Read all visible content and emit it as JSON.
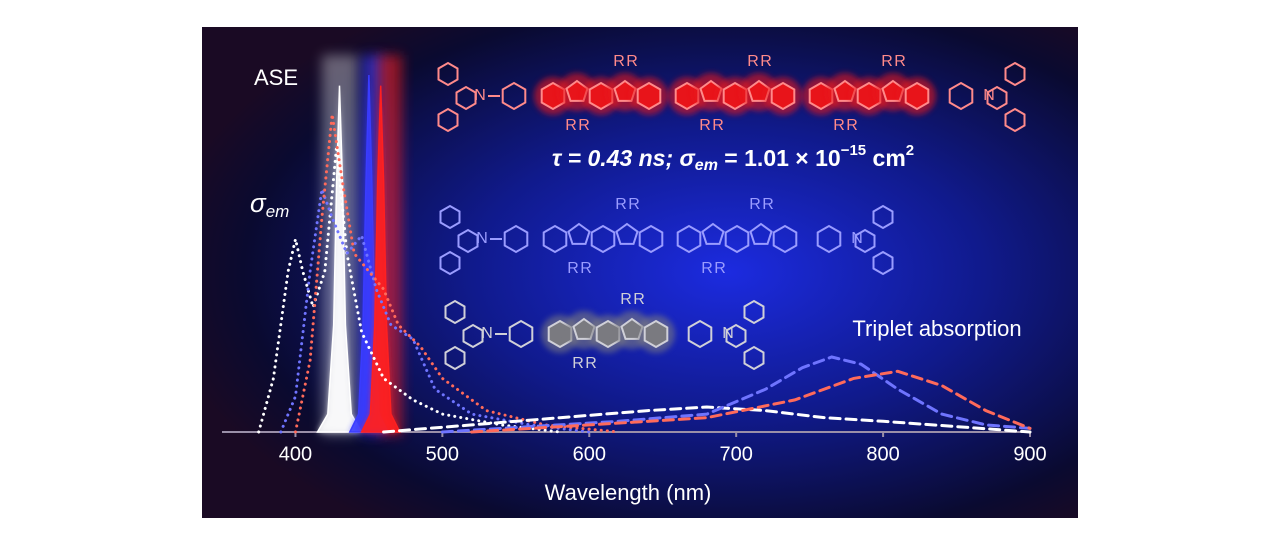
{
  "chart_data": {
    "type": "line",
    "xlabel": "Wavelength (nm)",
    "xlim": [
      350,
      900
    ],
    "xticks": [
      400,
      500,
      600,
      700,
      800,
      900
    ],
    "ylim": [
      0,
      1
    ],
    "annotations": {
      "ase": "ASE",
      "sigma": [
        "σ",
        "em"
      ],
      "triplet": "Triplet absorption",
      "parameters": [
        "τ = 0.43 ns; ",
        "σ",
        "em",
        " = 1.01 × 10",
        "−15",
        " cm",
        "2"
      ]
    },
    "structure_labels": {
      "substituent": "R",
      "nitrogen": "N"
    },
    "series": [
      {
        "style": "area",
        "color": "#ffffff",
        "x": [
          415,
          422,
          426,
          428,
          430,
          432,
          434,
          438,
          445
        ],
        "values": [
          0,
          0.05,
          0.3,
          0.7,
          0.97,
          0.7,
          0.3,
          0.05,
          0
        ]
      },
      {
        "style": "area",
        "color": "#3a3cff",
        "x": [
          437,
          443,
          446,
          448,
          450,
          452,
          454,
          457,
          463
        ],
        "values": [
          0,
          0.05,
          0.3,
          0.7,
          1.0,
          0.7,
          0.3,
          0.05,
          0
        ]
      },
      {
        "style": "area",
        "color": "#ff2020",
        "x": [
          445,
          451,
          454,
          456,
          458,
          460,
          462,
          465,
          471
        ],
        "values": [
          0,
          0.05,
          0.3,
          0.7,
          0.97,
          0.7,
          0.3,
          0.05,
          0
        ]
      },
      {
        "style": "dotted",
        "color": "#ffffff",
        "x": [
          375,
          385,
          395,
          400,
          405,
          412,
          420,
          428,
          435,
          445,
          460,
          480,
          500,
          540,
          580
        ],
        "values": [
          0,
          0.15,
          0.45,
          0.54,
          0.45,
          0.35,
          0.45,
          0.8,
          0.5,
          0.28,
          0.15,
          0.09,
          0.05,
          0.02,
          0
        ]
      },
      {
        "style": "dotted",
        "color": "#6f74ff",
        "x": [
          390,
          400,
          410,
          418,
          425,
          435,
          445,
          455,
          465,
          480,
          495,
          520,
          560,
          600
        ],
        "values": [
          0,
          0.1,
          0.45,
          0.68,
          0.6,
          0.5,
          0.55,
          0.4,
          0.3,
          0.26,
          0.12,
          0.05,
          0.02,
          0
        ]
      },
      {
        "style": "dotted",
        "color": "#ff6a5a",
        "x": [
          400,
          410,
          418,
          425,
          432,
          440,
          450,
          460,
          470,
          485,
          500,
          530,
          570,
          620
        ],
        "values": [
          0,
          0.2,
          0.6,
          0.89,
          0.7,
          0.5,
          0.45,
          0.4,
          0.3,
          0.24,
          0.15,
          0.06,
          0.02,
          0
        ]
      },
      {
        "style": "dashed",
        "color": "#ffffff",
        "x": [
          460,
          520,
          580,
          640,
          680,
          720,
          760,
          800,
          850,
          900
        ],
        "values": [
          0,
          0.02,
          0.04,
          0.06,
          0.07,
          0.06,
          0.04,
          0.03,
          0.015,
          0
        ]
      },
      {
        "style": "dashed",
        "color": "#6f74ff",
        "x": [
          500,
          560,
          620,
          680,
          720,
          745,
          765,
          785,
          810,
          840,
          870,
          900
        ],
        "values": [
          0,
          0.015,
          0.03,
          0.05,
          0.12,
          0.18,
          0.21,
          0.19,
          0.12,
          0.05,
          0.02,
          0.01
        ]
      },
      {
        "style": "dashed",
        "color": "#ff6a5a",
        "x": [
          520,
          600,
          680,
          740,
          780,
          810,
          840,
          870,
          900
        ],
        "values": [
          0,
          0.02,
          0.04,
          0.09,
          0.15,
          0.17,
          0.13,
          0.06,
          0.01
        ]
      }
    ]
  }
}
